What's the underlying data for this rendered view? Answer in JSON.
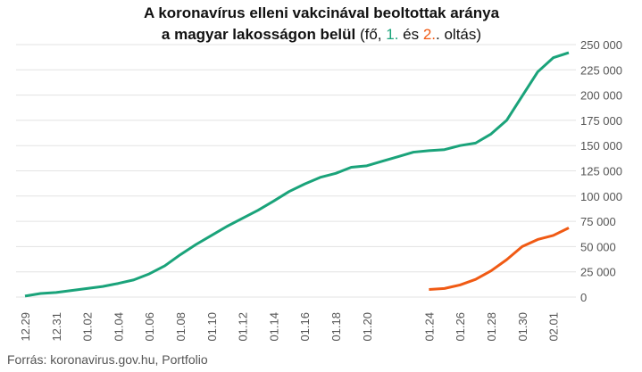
{
  "chart_data": {
    "type": "line",
    "title_line1": "A koronavírus elleni vakcinával beoltottak aránya",
    "title_line2": "a magyar lakosságon belül",
    "title_part_open": " (fő, ",
    "title_part_and": " és ",
    "title_part_close": ". oltás)",
    "source": "Forrás: koronavirus.gov.hu, Portfolio",
    "categories": [
      "12.29",
      null,
      "12.31",
      null,
      "01.02",
      null,
      "01.04",
      null,
      "01.06",
      null,
      "01.08",
      null,
      "01.10",
      null,
      "01.12",
      null,
      "01.14",
      null,
      "01.16",
      null,
      "01.18",
      null,
      "01.20",
      null,
      null,
      null,
      "01.24",
      null,
      "01.26",
      null,
      "01.28",
      null,
      "01.30",
      null,
      "02.01",
      null
    ],
    "series": [
      {
        "name": "1.",
        "color": "#1aa37a",
        "values": [
          1000,
          3500,
          4500,
          6500,
          8500,
          10500,
          13500,
          17000,
          23000,
          31000,
          42000,
          52000,
          61000,
          70000,
          78000,
          86000,
          95000,
          104500,
          112000,
          118500,
          122500,
          128500,
          130000,
          134500,
          139000,
          143500,
          145000,
          146000,
          150000,
          152500,
          161500,
          175000,
          199000,
          223000,
          237000,
          242000
        ]
      },
      {
        "name": "2.",
        "color": "#f05a14",
        "values": [
          null,
          null,
          null,
          null,
          null,
          null,
          null,
          null,
          null,
          null,
          null,
          null,
          null,
          null,
          null,
          null,
          null,
          null,
          null,
          null,
          null,
          null,
          null,
          null,
          null,
          null,
          7500,
          8500,
          12000,
          17500,
          26000,
          37000,
          50000,
          57000,
          61000,
          68500
        ]
      }
    ],
    "ylim": [
      0,
      250000
    ],
    "yticks": [
      0,
      {
        "value": 25000,
        "label": "25 000"
      },
      {
        "value": 50000,
        "label": "50 000"
      },
      {
        "value": 75000,
        "label": "75 000"
      },
      {
        "value": 100000,
        "label": "100 000"
      },
      {
        "value": 125000,
        "label": "125 000"
      },
      {
        "value": 150000,
        "label": "150 000"
      },
      {
        "value": 175000,
        "label": "175 000"
      },
      {
        "value": 200000,
        "label": "200 000"
      },
      {
        "value": 225000,
        "label": "225 000"
      },
      {
        "value": 250000,
        "label": "250 000"
      }
    ],
    "grid": true
  }
}
